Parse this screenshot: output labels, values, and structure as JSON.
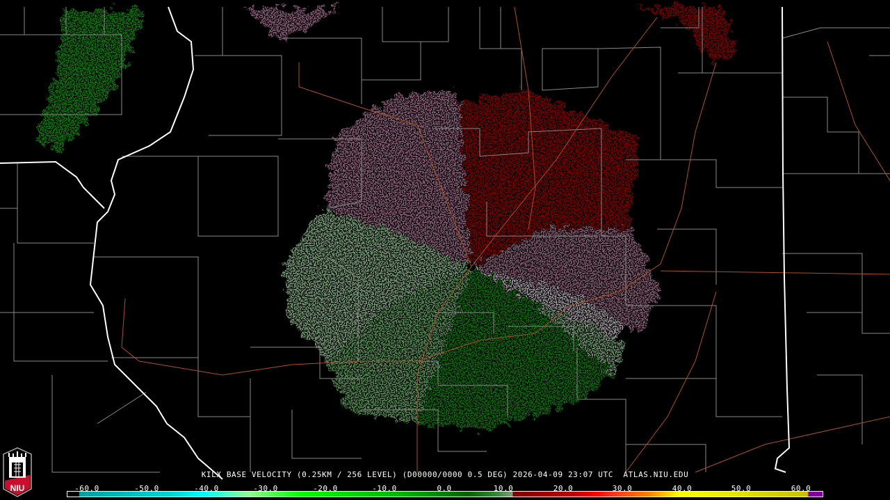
{
  "product": {
    "title": "KILX BASE VELOCITY (0.25KM / 256 LEVEL) (D00000/0000 0.5 DEG) 2026-04-09 23:07 UTC  ATLAS.NIU.EDU"
  },
  "logo": {
    "text": "NIU",
    "color": "#c8102e"
  },
  "colorbar": {
    "units_labels": [
      "-60.0",
      "-50.0",
      "-40.0",
      "-30.0",
      "-20.0",
      "-10.0",
      "0.0",
      "10.0",
      "20.0",
      "30.0",
      "40.0",
      "50.0",
      "60.0"
    ],
    "range": [
      -63,
      64
    ],
    "colors": {
      "strong_inbound": "#00a0a0",
      "inbound_cyan": "#00ffff",
      "inbound_green": "#00ff00",
      "inbound_dark_green": "#006400",
      "near_zero": "#a8a8a8",
      "outbound_pink": "#8c5a78",
      "outbound_dark_red": "#800000",
      "outbound_red": "#ff0000",
      "outbound_orange": "#ff8000",
      "outbound_yellow": "#ffff00",
      "range_folded": "#8000a0"
    }
  },
  "map": {
    "radar_site": "KILX",
    "colors": {
      "state_lines": "#ffffff",
      "county_lines": "#8a8a8a",
      "highways": "#b0501e"
    }
  }
}
